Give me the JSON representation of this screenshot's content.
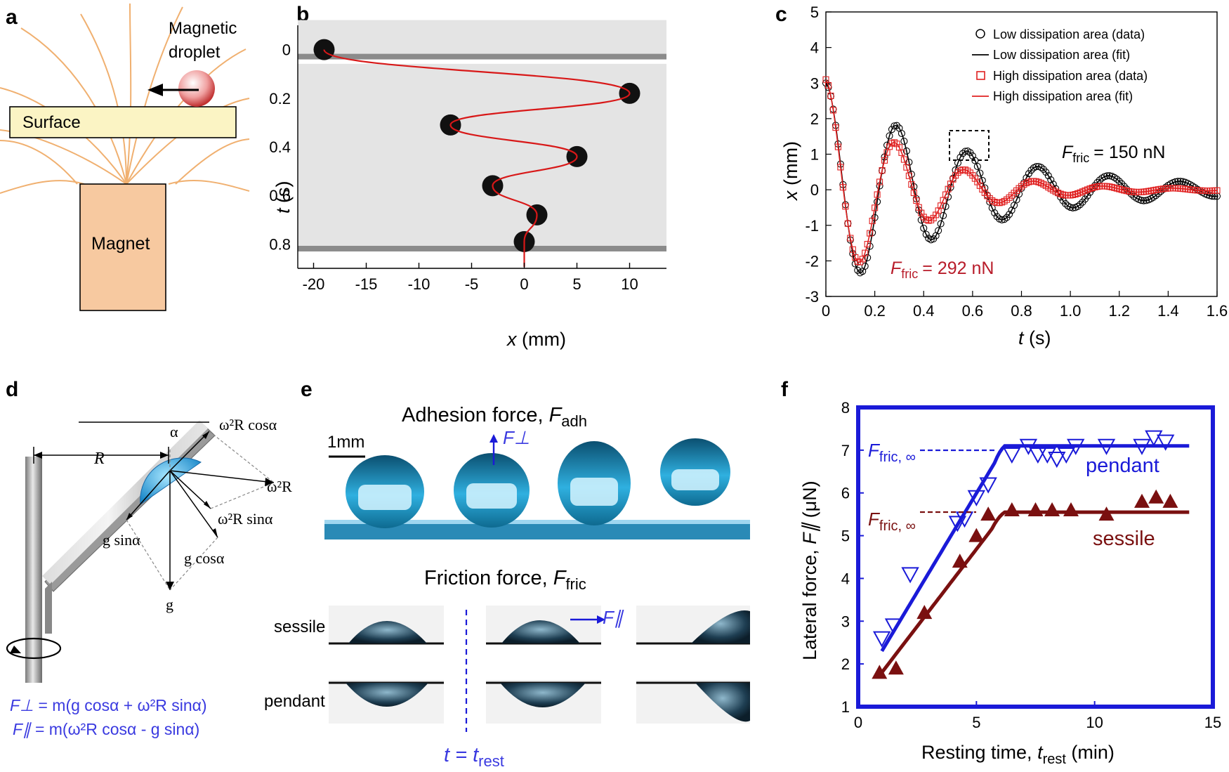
{
  "panels": {
    "a": {
      "label": "a",
      "droplet_label_1": "Magnetic",
      "droplet_label_2": "droplet",
      "surface_label": "Surface",
      "magnet_label": "Magnet"
    },
    "b": {
      "label": "b",
      "ylabel": "t",
      "ylabel_unit": "(s)",
      "xlabel": "x",
      "xlabel_unit": "(mm)",
      "xticks": [
        "-20",
        "-15",
        "-10",
        "-5",
        "0",
        "5",
        "10"
      ],
      "yticks": [
        "0",
        "0.2",
        "0.4",
        "0.6",
        "0.8"
      ]
    },
    "c": {
      "label": "c",
      "ylabel": "x",
      "ylabel_unit": "(mm)",
      "xlabel": "t",
      "xlabel_unit": "(s)",
      "legend": [
        "Low dissipation area (data)",
        "Low dissipation area (fit)",
        "High dissipation area (data)",
        "High dissipation area (fit)"
      ],
      "annot_low_sym": "F",
      "annot_low_sub": "fric",
      "annot_low_val": "= 150 nN",
      "annot_high_sym": "F",
      "annot_high_sub": "fric",
      "annot_high_val": "= 292 nN"
    },
    "d": {
      "label": "d",
      "alpha": "α",
      "R": "R",
      "vec_top": "ω²R cosα",
      "vec_right": "ω²R",
      "vec_sin": "ω²R sinα",
      "g_sin": "g sinα",
      "g_cos": "g cosα",
      "g": "g",
      "eq1_lhs": "F⊥",
      "eq1_rhs": "= m(g cosα + ω²R sinα)",
      "eq2_lhs": "F∥",
      "eq2_rhs": "= m(ω²R cosα - g sinα)"
    },
    "e": {
      "label": "e",
      "adh_title": "Adhesion force, ",
      "adh_sym": "F",
      "adh_sub": "adh",
      "scale": "1mm",
      "fperp": "F⊥",
      "fric_title": "Friction force, ",
      "fric_sym": "F",
      "fric_sub": "fric",
      "fpar": "F∥",
      "row_sessile": "sessile",
      "row_pendant": "pendant",
      "t_eq": "t = t",
      "t_sub": "rest"
    },
    "f": {
      "label": "f",
      "ylabel": "Lateral force, ",
      "ylabel_sym": "F∥",
      "ylabel_unit": " (μN)",
      "xlabel": "Resting time, ",
      "xlabel_sym": "t",
      "xlabel_sub": "rest",
      "xlabel_unit": " (min)",
      "ffric_inf": "F",
      "ffric_sub": "fric, ∞",
      "pendant": "pendant",
      "sessile": "sessile"
    }
  },
  "colors": {
    "red": "#e02020",
    "blue": "#1a1ad8",
    "darkred": "#7a1010",
    "surface": "#fbf4c4",
    "magnet": "#f7c9a0",
    "fieldline": "#f0b070",
    "droplet": "#3aa8d8"
  },
  "chart_data": [
    {
      "type": "line",
      "title": "b",
      "xlabel": "x (mm)",
      "ylabel": "t (s)",
      "xlim": [
        -21.5,
        13.5
      ],
      "ylim": [
        0.9,
        -0.1
      ],
      "xticks": [
        -20,
        -15,
        -10,
        -5,
        0,
        5,
        10
      ],
      "yticks": [
        0,
        0.2,
        0.4,
        0.6,
        0.8
      ],
      "droplet_positions": [
        {
          "t": 0,
          "x": -19
        },
        {
          "t": 0.18,
          "x": 10
        },
        {
          "t": 0.31,
          "x": -7
        },
        {
          "t": 0.44,
          "x": 5
        },
        {
          "t": 0.56,
          "x": -3
        },
        {
          "t": 0.68,
          "x": 1.2
        },
        {
          "t": 0.79,
          "x": 0
        }
      ]
    },
    {
      "type": "scatter",
      "title": "c",
      "xlabel": "t (s)",
      "ylabel": "x (mm)",
      "xlim": [
        0,
        1.6
      ],
      "ylim": [
        -3,
        5
      ],
      "xticks": [
        0,
        0.2,
        0.4,
        0.6,
        0.8,
        1.0,
        1.2,
        1.4,
        1.6
      ],
      "yticks": [
        -3,
        -2,
        -1,
        0,
        1,
        2,
        3,
        4,
        5
      ],
      "series": [
        {
          "name": "Low dissipation area (data)",
          "A": 3.0,
          "decay": 1.75,
          "period": 0.29,
          "phase_shift": 0
        },
        {
          "name": "High dissipation area (data)",
          "A": 3.1,
          "decay": 3.0,
          "period": 0.285,
          "phase_shift": 0
        }
      ]
    },
    {
      "type": "scatter",
      "title": "f",
      "xlabel": "Resting time, t_rest (min)",
      "ylabel": "Lateral force, F∥ (μN)",
      "xlim": [
        0,
        15
      ],
      "ylim": [
        1,
        8
      ],
      "xticks": [
        0,
        5,
        10,
        15
      ],
      "yticks": [
        1,
        2,
        3,
        4,
        5,
        6,
        7,
        8
      ],
      "series": [
        {
          "name": "pendant",
          "x": [
            1.0,
            1.5,
            2.2,
            4.2,
            4.5,
            5.0,
            5.5,
            6.5,
            7.2,
            7.6,
            8.0,
            8.4,
            8.8,
            9.2,
            10.5,
            12.0,
            12.5,
            13.0
          ],
          "y": [
            2.6,
            2.9,
            4.1,
            5.3,
            5.4,
            5.9,
            6.2,
            6.9,
            7.1,
            6.9,
            6.9,
            6.8,
            6.9,
            7.1,
            7.1,
            7.1,
            7.3,
            7.2
          ],
          "fit_plateau": 7.1,
          "fit_k": 0.72,
          "fit_x0": 1.0,
          "fit_y0": 2.3
        },
        {
          "name": "sessile",
          "x": [
            0.9,
            1.6,
            2.8,
            4.3,
            5.0,
            5.5,
            6.5,
            7.5,
            8.2,
            9.0,
            10.5,
            12.0,
            12.6,
            13.2
          ],
          "y": [
            1.8,
            1.9,
            3.2,
            4.4,
            5.0,
            5.5,
            5.6,
            5.6,
            5.6,
            5.6,
            5.5,
            5.8,
            5.9,
            5.8
          ],
          "fit_plateau": 5.55,
          "fit_k": 0.8,
          "fit_x0": 1.0,
          "fit_y0": 1.8
        }
      ]
    }
  ]
}
